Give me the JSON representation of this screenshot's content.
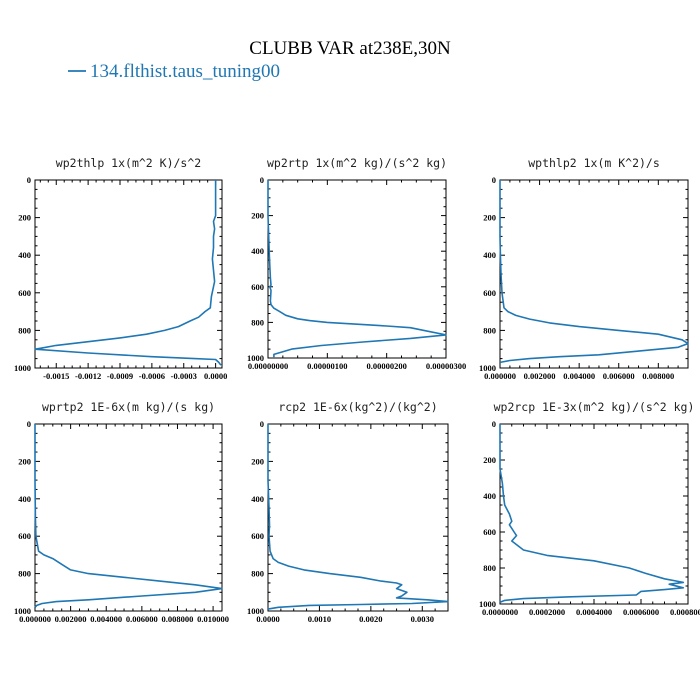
{
  "figure": {
    "title": "CLUBB VAR at238E,30N",
    "legend_label": "134.flthist.taus_tuning00",
    "line_color": "#1f77b4"
  },
  "chart_data": [
    {
      "type": "line",
      "title": "wp2thlp  1x(m^2 K)/s^2",
      "xlim": [
        -0.0017,
        6e-05
      ],
      "ylim": [
        1000,
        0
      ],
      "xticks": [
        -0.0015,
        -0.0012,
        -0.0009,
        -0.0006,
        -0.0003,
        0.0
      ],
      "xtick_labels": [
        "-0.0015",
        "-0.0012",
        "-0.0009",
        "-0.0006",
        "-0.0003",
        "0.0000"
      ],
      "yticks": [
        0,
        200,
        400,
        600,
        800,
        1000
      ],
      "ytick_labels": [
        "0",
        "200",
        "400",
        "600",
        "800",
        "1000"
      ],
      "series": [
        {
          "x": [
            0.0,
            0.0,
            0.0,
            -2e-05,
            -1e-05,
            -2e-05,
            -2e-05,
            -3e-05,
            -2e-05,
            -1e-05,
            -4e-05,
            -5e-05,
            -0.0001,
            -0.00016,
            -0.00024,
            -0.00035,
            -0.00048,
            -0.00065,
            -0.0009,
            -0.0012,
            -0.0015,
            -0.00165,
            -0.0017,
            -0.0012,
            -0.0006,
            -0.0002,
            0.0,
            3e-05,
            5e-05
          ],
          "y": [
            0,
            100,
            190,
            220,
            260,
            300,
            360,
            420,
            480,
            540,
            620,
            680,
            700,
            730,
            750,
            780,
            800,
            820,
            840,
            860,
            880,
            895,
            900,
            920,
            940,
            950,
            955,
            970,
            985
          ]
        }
      ]
    },
    {
      "type": "line",
      "title": "wp2rtp  1x(m^2 kg)/(s^2 kg)",
      "xlim": [
        0.0,
        3e-06
      ],
      "ylim": [
        1000,
        0
      ],
      "xticks": [
        0.0,
        1e-06,
        2e-06,
        3e-06
      ],
      "xtick_labels": [
        "0.00000000",
        "0.00000100",
        "0.00000200",
        "0.00000300"
      ],
      "yticks": [
        0,
        200,
        400,
        600,
        800,
        1000
      ],
      "ytick_labels": [
        "0",
        "200",
        "400",
        "600",
        "800",
        "1000"
      ],
      "series": [
        {
          "x": [
            0.0,
            0.0,
            1e-08,
            2e-08,
            3e-08,
            4e-08,
            5e-08,
            3e-08,
            5e-08,
            4e-08,
            5e-08,
            1e-07,
            2e-07,
            3e-07,
            5e-07,
            7e-07,
            1e-06,
            1.5e-06,
            2e-06,
            2.4e-06,
            2.7e-06,
            3e-06,
            2.4e-06,
            1.6e-06,
            9e-07,
            4e-07,
            1e-07,
            1e-07
          ],
          "y": [
            0,
            200,
            300,
            400,
            480,
            550,
            590,
            600,
            620,
            680,
            700,
            720,
            740,
            760,
            780,
            790,
            800,
            810,
            820,
            830,
            850,
            870,
            890,
            910,
            930,
            950,
            980,
            995
          ]
        }
      ]
    },
    {
      "type": "line",
      "title": "wpthlp2  1x(m K^2)/s",
      "xlim": [
        0.0,
        0.0095
      ],
      "ylim": [
        1000,
        0
      ],
      "xticks": [
        0.0,
        0.002,
        0.004,
        0.006,
        0.008
      ],
      "xtick_labels": [
        "0.000000",
        "0.002000",
        "0.004000",
        "0.006000",
        "0.008000"
      ],
      "yticks": [
        0,
        200,
        400,
        600,
        800,
        1000
      ],
      "ytick_labels": [
        "0",
        "200",
        "400",
        "600",
        "800",
        "1000"
      ],
      "series": [
        {
          "x": [
            0.0,
            0.0,
            2e-05,
            5e-05,
            0.0001,
            0.0002,
            0.0004,
            0.0008,
            0.0015,
            0.0025,
            0.004,
            0.006,
            0.008,
            0.0092,
            0.0095,
            0.009,
            0.007,
            0.005,
            0.003,
            0.0015,
            0.0005,
            0.0
          ],
          "y": [
            0,
            300,
            400,
            500,
            600,
            680,
            700,
            720,
            740,
            760,
            780,
            800,
            820,
            850,
            870,
            890,
            910,
            930,
            940,
            950,
            960,
            970
          ]
        }
      ]
    },
    {
      "type": "line",
      "title": "wprtp2  1E-6x(m kg)/(s kg)",
      "xlim": [
        0.0,
        0.0105
      ],
      "ylim": [
        1000,
        0
      ],
      "xticks": [
        0.0,
        0.002,
        0.004,
        0.006,
        0.008,
        0.01
      ],
      "xtick_labels": [
        "0.000000",
        "0.002000",
        "0.004000",
        "0.006000",
        "0.008000",
        "0.010000"
      ],
      "yticks": [
        0,
        200,
        400,
        600,
        800,
        1000
      ],
      "ytick_labels": [
        "0",
        "200",
        "400",
        "600",
        "800",
        "1000"
      ],
      "series": [
        {
          "x": [
            0.0,
            0.0,
            2e-05,
            5e-05,
            0.0002,
            0.0005,
            0.001,
            0.0015,
            0.002,
            0.003,
            0.005,
            0.007,
            0.009,
            0.0105,
            0.009,
            0.006,
            0.003,
            0.0012,
            0.0004,
            0.0001,
            0.0
          ],
          "y": [
            0,
            300,
            500,
            600,
            680,
            700,
            720,
            750,
            780,
            800,
            820,
            840,
            860,
            880,
            900,
            920,
            940,
            950,
            960,
            970,
            980
          ]
        }
      ]
    },
    {
      "type": "line",
      "title": "rcp2  1E-6x(kg^2)/(kg^2)",
      "xlim": [
        0.0,
        0.0035
      ],
      "ylim": [
        1000,
        0
      ],
      "xticks": [
        0.0,
        0.001,
        0.002,
        0.003
      ],
      "xtick_labels": [
        "0.0000",
        "0.0010",
        "0.0020",
        "0.0030"
      ],
      "yticks": [
        0,
        200,
        400,
        600,
        800,
        1000
      ],
      "ytick_labels": [
        "0",
        "200",
        "400",
        "600",
        "800",
        "1000"
      ],
      "series": [
        {
          "x": [
            0.0,
            0.0,
            2e-05,
            3e-05,
            2e-05,
            4e-05,
            0.0001,
            0.0002,
            0.0004,
            0.0007,
            0.0012,
            0.0018,
            0.0022,
            0.0025,
            0.0026,
            0.0025,
            0.0027,
            0.0026,
            0.0025,
            0.0031,
            0.0035,
            0.0028,
            0.0018,
            0.0008,
            0.0002,
            0.0
          ],
          "y": [
            0,
            300,
            450,
            540,
            600,
            680,
            720,
            740,
            760,
            780,
            800,
            820,
            840,
            850,
            860,
            880,
            900,
            920,
            930,
            940,
            950,
            960,
            965,
            970,
            980,
            990
          ]
        }
      ]
    },
    {
      "type": "line",
      "title": "wp2rcp  1E-3x(m^2 kg)/(s^2 kg)",
      "xlim": [
        0.0,
        0.0008
      ],
      "ylim": [
        1000,
        0
      ],
      "xticks": [
        0.0,
        0.0002,
        0.0004,
        0.0006,
        0.0008
      ],
      "xtick_labels": [
        "0.0000000",
        "0.0002000",
        "0.0004000",
        "0.0006000",
        "0.0008000"
      ],
      "yticks": [
        0,
        200,
        400,
        600,
        800,
        1000
      ],
      "ytick_labels": [
        "0",
        "200",
        "400",
        "600",
        "800",
        "1000"
      ],
      "series": [
        {
          "x": [
            0.0,
            0.0,
            1e-05,
            1.5e-05,
            2e-05,
            4e-05,
            5e-05,
            4e-05,
            5e-05,
            6e-05,
            7e-05,
            5e-05,
            0.0001,
            0.0002,
            0.0004,
            0.00055,
            0.00062,
            0.0007,
            0.00078,
            0.00072,
            0.00078,
            0.0007,
            0.0006,
            0.00058,
            0.0003,
            0.0001,
            2e-05,
            0.0
          ],
          "y": [
            0,
            250,
            330,
            400,
            450,
            500,
            540,
            560,
            580,
            600,
            620,
            650,
            700,
            730,
            760,
            800,
            830,
            860,
            880,
            890,
            910,
            920,
            930,
            950,
            960,
            970,
            980,
            990
          ]
        }
      ]
    }
  ]
}
